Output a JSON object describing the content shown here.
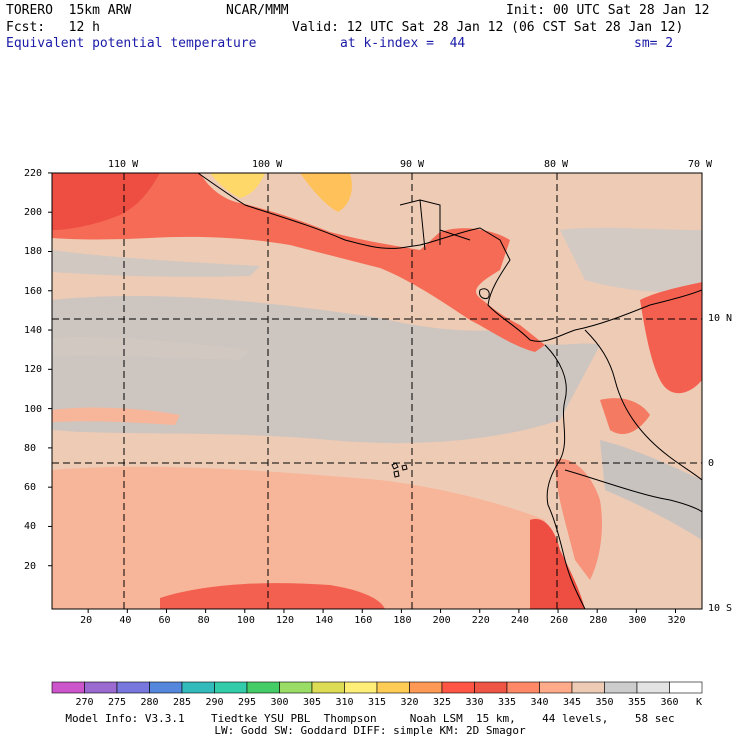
{
  "header": {
    "model": "TORERO  15km ARW",
    "center": "NCAR/MMM",
    "init": "Init: 00 UTC Sat 28 Jan 12",
    "fcst": "Fcst:   12 h",
    "valid": "Valid: 12 UTC Sat 28 Jan 12 (06 CST Sat 28 Jan 12)",
    "field": "Equivalent potential temperature",
    "level": "at k-index =  44",
    "smoothing": "sm= 2"
  },
  "map": {
    "lon_labels": [
      "110 W",
      "100 W",
      "90 W",
      "80 W",
      "70 W"
    ],
    "lat_labels": [
      "10 N",
      "0",
      "10 S"
    ],
    "y_ticks": [
      "220",
      "200",
      "180",
      "160",
      "140",
      "120",
      "100",
      "80",
      "60",
      "40",
      "20"
    ],
    "x_ticks": [
      "20",
      "40",
      "60",
      "80",
      "100",
      "120",
      "140",
      "160",
      "180",
      "200",
      "220",
      "240",
      "260",
      "280",
      "300",
      "320"
    ]
  },
  "colorbar": {
    "labels": [
      "270",
      "275",
      "280",
      "285",
      "290",
      "295",
      "300",
      "305",
      "310",
      "315",
      "320",
      "325",
      "330",
      "335",
      "340",
      "345",
      "350",
      "355",
      "360"
    ],
    "unit": "K",
    "colors": [
      "#cc55cc",
      "#9a6ad0",
      "#7777dd",
      "#5588dd",
      "#33bbbb",
      "#33ccaa",
      "#44cc66",
      "#99dd66",
      "#dddd55",
      "#ffee77",
      "#ffcc55",
      "#ff9955",
      "#ff5544",
      "#ee5544",
      "#ff8866",
      "#ffaa88",
      "#eecbb5",
      "#cccccc",
      "#e3e3e3",
      "#ffffff"
    ]
  },
  "footer": {
    "line1": "Model Info: V3.3.1    Tiedtke YSU PBL  Thompson     Noah LSM  15 km,    44 levels,    58 sec",
    "line2": "LW: Godd SW: Goddard DIFF: simple KM: 2D Smagor"
  }
}
